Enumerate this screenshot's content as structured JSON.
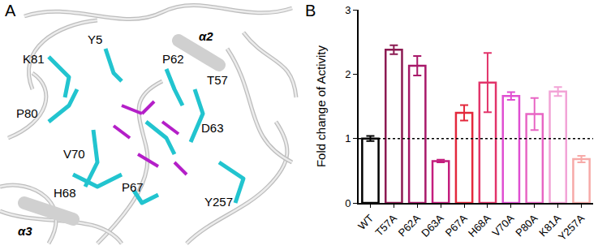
{
  "panel_labels": [
    "A",
    "B"
  ],
  "structure_labels": [
    "K81",
    "Y5",
    "α2",
    "P62",
    "T57",
    "P80",
    "D63",
    "V70",
    "H68",
    "P67",
    "Y257",
    "α3"
  ],
  "chart_data": {
    "type": "bar",
    "ylabel": "Fold change of Activity",
    "categories": [
      "WT",
      "T57A",
      "P62A",
      "D63A",
      "P67A",
      "H68A",
      "V70A",
      "P80A",
      "K81A",
      "Y257A"
    ],
    "values": [
      1.0,
      2.38,
      2.13,
      0.65,
      1.4,
      1.87,
      1.66,
      1.38,
      1.73,
      0.68
    ],
    "errors": [
      0.04,
      0.07,
      0.15,
      0.02,
      0.12,
      0.46,
      0.06,
      0.25,
      0.07,
      0.05
    ],
    "colors": [
      "#000000",
      "#8c1a52",
      "#a8196a",
      "#c41e7e",
      "#e3283c",
      "#e2346a",
      "#e04fd2",
      "#e866c4",
      "#f2a3d6",
      "#f7aaa8"
    ],
    "baseline": 1,
    "ylim": [
      0,
      3
    ],
    "yticks": [
      0,
      1,
      2,
      3
    ],
    "grid": false
  }
}
